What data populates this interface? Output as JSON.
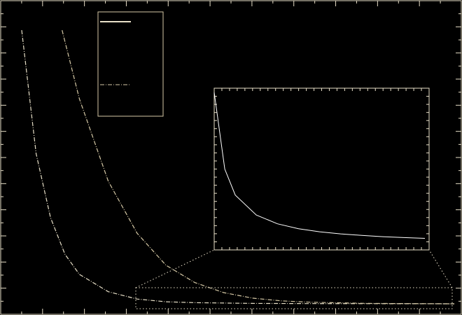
{
  "chart_data": {
    "type": "line",
    "title": "",
    "xlabel": "",
    "ylabel": "",
    "grid": false,
    "legend_placement": "top-left",
    "frame_color": "#e8dfc8",
    "series": [
      {
        "name": "",
        "style": "dash-dot",
        "color": "#e8e0c8",
        "x": [
          0.0,
          0.5,
          1.0,
          1.5,
          2.0,
          3.0,
          4.0,
          5.0,
          6.0,
          8.0,
          10.0,
          12.0,
          15.0
        ],
        "y": [
          3.0,
          1.65,
          0.95,
          0.55,
          0.33,
          0.14,
          0.06,
          0.03,
          0.02,
          0.012,
          0.01,
          0.009,
          0.008
        ]
      },
      {
        "name": "",
        "style": "dash-dot",
        "color": "#d6c9a6",
        "x": [
          1.4,
          2.0,
          3.0,
          4.0,
          5.0,
          6.0,
          7.0,
          8.0,
          9.0,
          10.0,
          12.0,
          15.0
        ],
        "y": [
          3.0,
          2.25,
          1.35,
          0.78,
          0.43,
          0.24,
          0.13,
          0.07,
          0.04,
          0.025,
          0.012,
          0.008
        ]
      }
    ],
    "inset": {
      "type": "line",
      "color": "#ffffff",
      "x": [
        0.0,
        0.05,
        0.1,
        0.2,
        0.3,
        0.4,
        0.5,
        0.6,
        0.7,
        0.8,
        0.9,
        1.0
      ],
      "y": [
        1.0,
        0.5,
        0.33,
        0.2,
        0.143,
        0.111,
        0.091,
        0.077,
        0.067,
        0.059,
        0.053,
        0.048
      ]
    }
  }
}
